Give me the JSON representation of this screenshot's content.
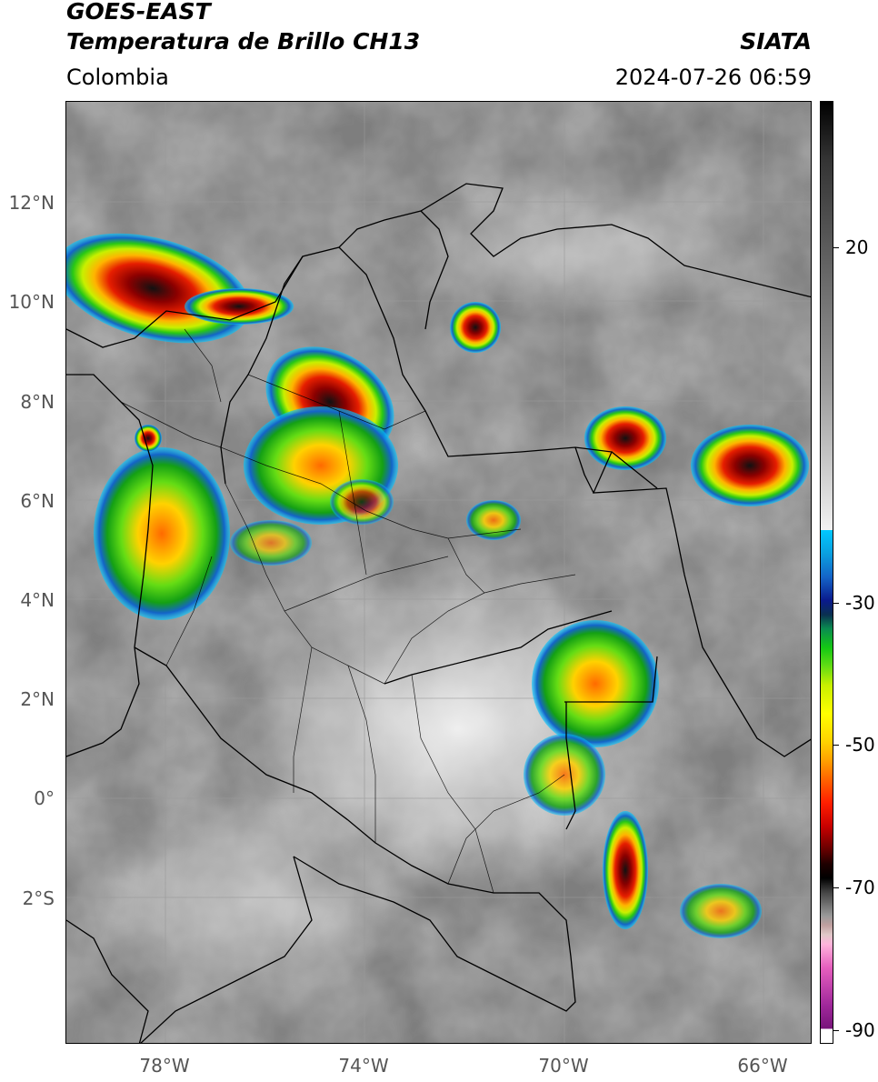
{
  "header": {
    "satellite": "GOES-EAST",
    "product": "Temperatura de Brillo CH13",
    "region": "Colombia",
    "institution": "SIATA",
    "datetime": "2024-07-26 06:59"
  },
  "map": {
    "lat_labels": [
      "12°N",
      "10°N",
      "8°N",
      "6°N",
      "4°N",
      "2°N",
      "0°",
      "2°S"
    ],
    "lon_labels": [
      "78°W",
      "74°W",
      "70°W",
      "66°W"
    ],
    "gridlines": true
  },
  "colorbar": {
    "labels": [
      "20",
      "-30",
      "-50",
      "-70",
      "-90"
    ],
    "units_hint": "°C"
  },
  "colors": {
    "cloud_gray": "#8c8c8c",
    "cold_red": "#d21414",
    "cold_black": "#1a1a1a",
    "green": "#3cdc14",
    "yellow": "#ffe600",
    "blue": "#1464c8"
  }
}
